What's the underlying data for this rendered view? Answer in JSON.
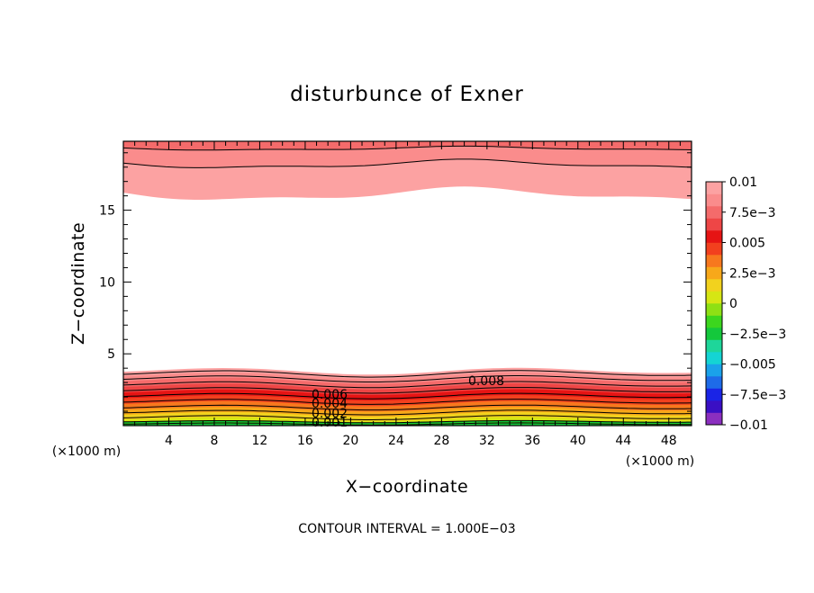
{
  "chart_data": {
    "type": "contour",
    "title": "disturbunce of Exner",
    "xlabel": "X−coordinate",
    "ylabel": "Z−coordinate",
    "x_unit": "(×1000 m)",
    "z_unit": "(×1000 m)",
    "xlim": [
      0,
      50
    ],
    "ylim": [
      0,
      19.8
    ],
    "x_ticks": [
      "4",
      "8",
      "12",
      "16",
      "20",
      "24",
      "28",
      "32",
      "36",
      "40",
      "44",
      "48"
    ],
    "y_ticks": [
      "5",
      "10",
      "15"
    ],
    "footer": "CONTOUR INTERVAL = 1.000E−03",
    "colorbar": {
      "range": [
        -0.01,
        0.01
      ],
      "tick_labels": [
        "0.01",
        "7.5e−3",
        "0.005",
        "2.5e−3",
        "0",
        "−2.5e−3",
        "−0.005",
        "−7.5e−3",
        "−0.01"
      ],
      "colors": [
        "#8b2fbf",
        "#3a0fc4",
        "#1a24e6",
        "#1e6be8",
        "#1aa2ea",
        "#14d4d4",
        "#1ed69a",
        "#14c83c",
        "#3cd61e",
        "#8ee014",
        "#d6e614",
        "#f2d21e",
        "#f7a81a",
        "#f7781e",
        "#f2401e",
        "#e61414",
        "#ee4646",
        "#f46b6b",
        "#fa8c8c",
        "#fca2a2"
      ]
    },
    "contour_labels": [
      "0.008",
      "0.006",
      "0.004",
      "0.002",
      "0.001"
    ],
    "lower_band": {
      "top_levels": [
        0.01,
        0.009,
        0.008,
        0.007,
        0.006,
        0.005,
        0.004,
        0.003,
        0.002,
        0.001
      ],
      "z_top": [
        3.8,
        3.5,
        3.15,
        2.75,
        2.35,
        1.95,
        1.55,
        1.15,
        0.8,
        0.45
      ],
      "wave_amplitude": 0.25,
      "base_color": "#3cd61e"
    },
    "upper_band": {
      "levels": [
        0.01,
        0.009,
        0.008
      ],
      "z_bottom": [
        16.1,
        18.2,
        19.3
      ],
      "wave_amplitude": 0.55
    }
  }
}
